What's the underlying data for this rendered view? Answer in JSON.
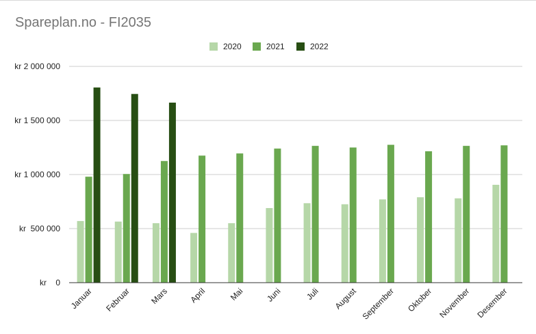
{
  "chart_data": {
    "type": "bar",
    "title": "Spareplan.no - FI2035",
    "xlabel": "",
    "ylabel": "",
    "categories": [
      "Januar",
      "Februar",
      "Mars",
      "April",
      "Mai",
      "Juni",
      "Juli",
      "August",
      "September",
      "Oktober",
      "November",
      "Desember"
    ],
    "series": [
      {
        "name": "2020",
        "color": "#b6d7a8",
        "values": [
          570000,
          565000,
          550000,
          460000,
          550000,
          690000,
          735000,
          725000,
          770000,
          790000,
          780000,
          905000
        ]
      },
      {
        "name": "2021",
        "color": "#6aa84f",
        "values": [
          980000,
          1005000,
          1125000,
          1175000,
          1195000,
          1240000,
          1265000,
          1250000,
          1275000,
          1215000,
          1265000,
          1270000
        ]
      },
      {
        "name": "2022",
        "color": "#274e13",
        "values": [
          1805000,
          1745000,
          1665000,
          null,
          null,
          null,
          null,
          null,
          null,
          null,
          null,
          null
        ]
      }
    ],
    "ylim": [
      0,
      2000000
    ],
    "yticks": [
      0,
      500000,
      1000000,
      1500000,
      2000000
    ],
    "ytick_labels": [
      "kr    0",
      "kr  500 000",
      "kr 1 000 000",
      "kr 1 500 000",
      "kr 2 000 000"
    ],
    "grid": true,
    "legend": "top-center"
  }
}
